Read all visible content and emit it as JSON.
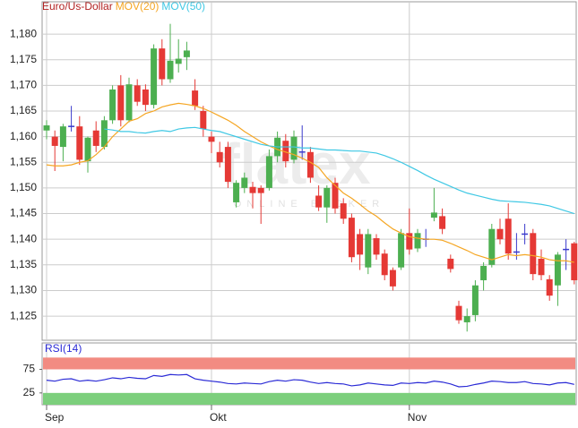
{
  "chart_data": [
    {
      "type": "candlestick",
      "title": "Euro/Us-Dollar",
      "title_color": "#b22222",
      "watermark": "flatex",
      "watermark_sub": "ONLINE BROKER",
      "categories": [
        "Sep",
        null,
        null,
        null,
        null,
        null,
        null,
        null,
        null,
        null,
        null,
        null,
        null,
        null,
        null,
        null,
        null,
        null,
        null,
        null,
        "Okt",
        null,
        null,
        null,
        null,
        null,
        null,
        null,
        null,
        null,
        null,
        null,
        null,
        null,
        null,
        null,
        null,
        null,
        null,
        null,
        null,
        null,
        null,
        null,
        "Nov",
        null,
        null,
        null,
        null,
        null,
        null,
        null,
        null,
        null,
        null,
        null,
        null,
        null,
        null,
        null,
        null,
        null,
        null,
        null,
        null
      ],
      "open": [
        1.1612,
        1.16,
        1.158,
        1.162,
        1.162,
        1.1552,
        1.1612,
        1.158,
        1.1632,
        1.17,
        1.1632,
        1.17,
        1.1692,
        1.1662,
        1.1772,
        1.1712,
        1.1742,
        1.1755,
        1.169,
        1.165,
        1.16,
        1.157,
        1.158,
        1.1472,
        1.15,
        1.1502,
        1.15,
        1.15,
        1.1562,
        1.1592,
        1.1555,
        1.157,
        1.157,
        1.1485,
        1.1462,
        1.151,
        1.147,
        1.1442,
        1.141,
        1.1345,
        1.1402,
        1.1372,
        1.134,
        1.1345,
        1.1412,
        1.1382,
        1.14,
        1.1442,
        1.1445,
        1.1362,
        1.127,
        1.1238,
        1.1252,
        1.132,
        1.135,
        1.142,
        1.144,
        1.1375,
        1.141,
        1.1412,
        1.1362,
        1.1322,
        1.131,
        1.138,
        1.1392
      ],
      "high": [
        1.1632,
        1.1612,
        1.1625,
        1.166,
        1.164,
        1.16,
        1.163,
        1.164,
        1.17,
        1.172,
        1.1715,
        1.1712,
        1.1702,
        1.178,
        1.179,
        1.182,
        1.179,
        1.1785,
        1.1712,
        1.166,
        1.161,
        1.159,
        1.159,
        1.1515,
        1.153,
        1.1512,
        1.1505,
        1.1575,
        1.161,
        1.1605,
        1.1612,
        1.1622,
        1.158,
        1.1505,
        1.1505,
        1.152,
        1.148,
        1.145,
        1.142,
        1.142,
        1.141,
        1.138,
        1.1345,
        1.142,
        1.146,
        1.142,
        1.142,
        1.15,
        1.146,
        1.137,
        1.128,
        1.1265,
        1.132,
        1.1355,
        1.143,
        1.144,
        1.147,
        1.1412,
        1.143,
        1.142,
        1.138,
        1.133,
        1.1375,
        1.14,
        1.1395
      ],
      "low": [
        1.1595,
        1.1533,
        1.1552,
        1.161,
        1.1545,
        1.153,
        1.157,
        1.1575,
        1.1625,
        1.162,
        1.1628,
        1.166,
        1.165,
        1.1655,
        1.17,
        1.1705,
        1.1725,
        1.173,
        1.1652,
        1.16,
        1.1568,
        1.154,
        1.15,
        1.1462,
        1.149,
        1.146,
        1.143,
        1.1495,
        1.155,
        1.154,
        1.1548,
        1.1555,
        1.151,
        1.1455,
        1.1432,
        1.145,
        1.143,
        1.1355,
        1.134,
        1.1332,
        1.136,
        1.132,
        1.13,
        1.134,
        1.137,
        1.1375,
        1.1385,
        1.1435,
        1.141,
        1.1335,
        1.1235,
        1.122,
        1.124,
        1.13,
        1.1345,
        1.139,
        1.136,
        1.136,
        1.139,
        1.132,
        1.132,
        1.128,
        1.127,
        1.134,
        1.1312
      ],
      "close": [
        1.1622,
        1.1582,
        1.162,
        1.162,
        1.1555,
        1.1598,
        1.1582,
        1.1632,
        1.1692,
        1.1632,
        1.1702,
        1.1668,
        1.1662,
        1.1772,
        1.1712,
        1.1748,
        1.1752,
        1.1768,
        1.166,
        1.1615,
        1.159,
        1.155,
        1.1512,
        1.151,
        1.152,
        1.149,
        1.149,
        1.1562,
        1.1598,
        1.1552,
        1.16,
        1.157,
        1.152,
        1.1462,
        1.15,
        1.146,
        1.144,
        1.1365,
        1.137,
        1.141,
        1.137,
        1.133,
        1.1308,
        1.1412,
        1.138,
        1.1412,
        1.14,
        1.1452,
        1.142,
        1.1342,
        1.1242,
        1.125,
        1.131,
        1.1348,
        1.142,
        1.14,
        1.1372,
        1.1375,
        1.141,
        1.1332,
        1.133,
        1.129,
        1.137,
        1.138,
        1.132
      ],
      "up_color": "#4caf50",
      "down_color": "#e53935",
      "doji_color": "#3a3acc",
      "series": [
        {
          "name": "MOV(20)",
          "color": "#f5a623",
          "values": [
            1.1545,
            1.1543,
            1.1543,
            1.1545,
            1.155,
            1.1553,
            1.1565,
            1.158,
            1.16,
            1.1615,
            1.163,
            1.1635,
            1.1645,
            1.165,
            1.1658,
            1.1662,
            1.1665,
            1.1663,
            1.166,
            1.1655,
            1.1648,
            1.164,
            1.1632,
            1.1622,
            1.161,
            1.16,
            1.159,
            1.1582,
            1.1575,
            1.157,
            1.1565,
            1.1558,
            1.155,
            1.154,
            1.152,
            1.1505,
            1.149,
            1.148,
            1.1468,
            1.1455,
            1.1445,
            1.1432,
            1.142,
            1.1412,
            1.1405,
            1.1402,
            1.14,
            1.14,
            1.1398,
            1.1392,
            1.1385,
            1.1378,
            1.137,
            1.1365,
            1.136,
            1.1365,
            1.137,
            1.1368,
            1.137,
            1.1368,
            1.1365,
            1.136,
            1.1358,
            1.1358,
            1.1355
          ]
        },
        {
          "name": "MOV(50)",
          "color": "#3fc8e4",
          "values": [
            null,
            null,
            null,
            null,
            null,
            null,
            null,
            1.1615,
            1.1613,
            1.161,
            1.161,
            1.1608,
            1.1607,
            1.161,
            1.1612,
            1.161,
            1.1615,
            1.1617,
            1.1618,
            1.1615,
            1.1612,
            1.161,
            1.1605,
            1.16,
            1.1595,
            1.159,
            1.1585,
            1.1582,
            1.158,
            1.158,
            1.158,
            1.1578,
            1.1578,
            1.1576,
            1.1574,
            1.1574,
            1.1573,
            1.1572,
            1.1572,
            1.157,
            1.1568,
            1.1563,
            1.1557,
            1.155,
            1.1542,
            1.1534,
            1.1525,
            1.1517,
            1.151,
            1.1503,
            1.1496,
            1.149,
            1.1486,
            1.1482,
            1.1478,
            1.1475,
            1.1474,
            1.1473,
            1.1472,
            1.147,
            1.1468,
            1.1465,
            1.146,
            1.1455,
            1.145
          ]
        }
      ],
      "ylim": [
        1.1203,
        1.1863
      ],
      "yticks": [
        {
          "value": 1.125,
          "label": "1,125"
        },
        {
          "value": 1.13,
          "label": "1,130"
        },
        {
          "value": 1.135,
          "label": "1,135"
        },
        {
          "value": 1.14,
          "label": "1,140"
        },
        {
          "value": 1.145,
          "label": "1,145"
        },
        {
          "value": 1.15,
          "label": "1,150"
        },
        {
          "value": 1.155,
          "label": "1,155"
        },
        {
          "value": 1.16,
          "label": "1,160"
        },
        {
          "value": 1.165,
          "label": "1,165"
        },
        {
          "value": 1.17,
          "label": "1,170"
        },
        {
          "value": 1.175,
          "label": "1,175"
        },
        {
          "value": 1.18,
          "label": "1,180"
        }
      ],
      "grid": true
    },
    {
      "type": "line",
      "series": [
        {
          "name": "RSI(14)",
          "color": "#2b2bd6",
          "values": [
            52,
            50,
            54,
            55,
            50,
            52,
            50,
            53,
            57,
            55,
            58,
            56,
            55,
            62,
            60,
            64,
            63,
            64,
            55,
            52,
            50,
            48,
            45,
            44,
            46,
            45,
            44,
            49,
            52,
            50,
            53,
            52,
            48,
            45,
            47,
            45,
            44,
            40,
            42,
            46,
            44,
            42,
            41,
            46,
            45,
            47,
            46,
            50,
            48,
            44,
            38,
            39,
            43,
            46,
            50,
            49,
            47,
            47,
            49,
            45,
            44,
            42,
            46,
            47,
            43
          ]
        }
      ],
      "ylim": [
        0,
        131
      ],
      "yticks": [
        75,
        25
      ],
      "bands": [
        {
          "from": 75,
          "to": 100,
          "color": "#f28b82"
        },
        {
          "from": 0,
          "to": 25,
          "color": "#7ccf7c"
        }
      ]
    }
  ]
}
